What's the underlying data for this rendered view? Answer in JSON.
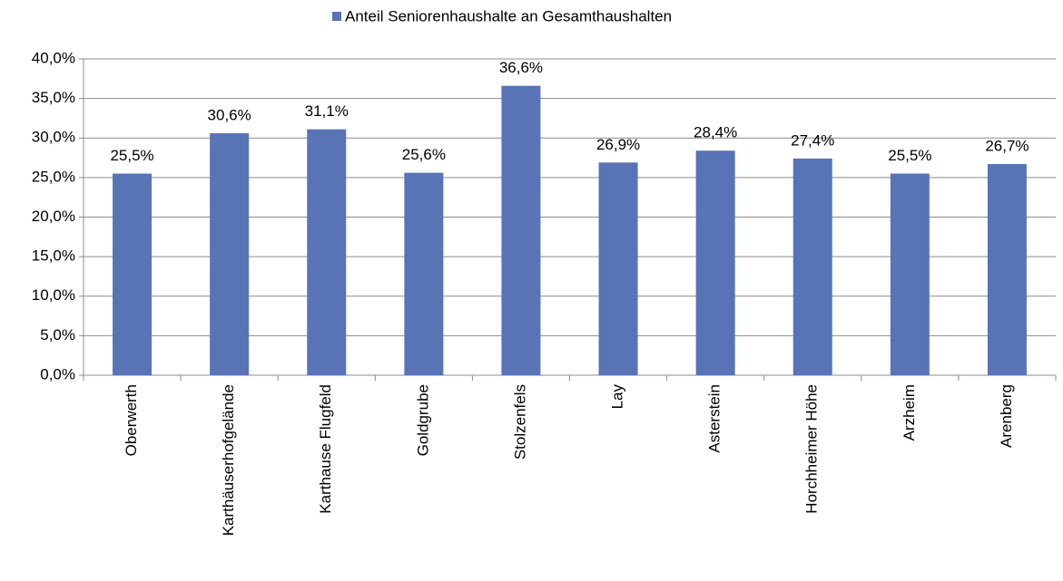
{
  "chart_data": {
    "type": "bar",
    "categories": [
      "Oberwerth",
      "Karthäuserhofgelände",
      "Karthause Flugfeld",
      "Goldgrube",
      "Stolzenfels",
      "Lay",
      "Asterstein",
      "Horchheimer Höhe",
      "Arzheim",
      "Arenberg"
    ],
    "series": [
      {
        "name": "Anteil Seniorenhaushalte an Gesamthaushalten",
        "color": "#5873b6",
        "values": [
          25.5,
          30.6,
          31.1,
          25.6,
          36.6,
          26.9,
          28.4,
          27.4,
          25.5,
          26.7
        ],
        "value_labels": [
          "25,5%",
          "30,6%",
          "31,1%",
          "25,6%",
          "36,6%",
          "26,9%",
          "28,4%",
          "27,4%",
          "25,5%",
          "26,7%"
        ]
      }
    ],
    "ylim": [
      0,
      40
    ],
    "yticks": [
      {
        "value": 0,
        "label": "0,0%"
      },
      {
        "value": 5,
        "label": "5,0%"
      },
      {
        "value": 10,
        "label": "10,0%"
      },
      {
        "value": 15,
        "label": "15,0%"
      },
      {
        "value": 20,
        "label": "20,0%"
      },
      {
        "value": 25,
        "label": "25,0%"
      },
      {
        "value": 30,
        "label": "30,0%"
      },
      {
        "value": 35,
        "label": "35,0%"
      },
      {
        "value": 40,
        "label": "40,0%"
      }
    ],
    "grid": true,
    "legend": "top"
  }
}
